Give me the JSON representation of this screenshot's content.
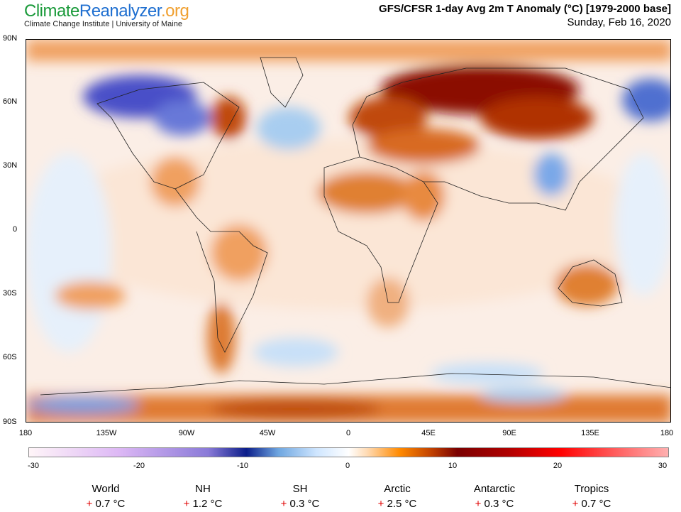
{
  "header": {
    "logo_climate": "Climate",
    "logo_reanalyzer": "Reanalyzer",
    ".org": ".org",
    "logo_org": ".org",
    "subtitle": "Climate Change Institute | University of Maine",
    "title": "GFS/CFSR 1-day Avg 2m T Anomaly (°C) [1979-2000 base]",
    "date": "Sunday, Feb 16, 2020"
  },
  "map": {
    "lat_labels": [
      "90N",
      "60N",
      "30N",
      "0",
      "30S",
      "60S",
      "90S"
    ],
    "lon_labels": [
      "180",
      "135W",
      "90W",
      "45W",
      "0",
      "45E",
      "90E",
      "135E",
      "180"
    ]
  },
  "colorbar": {
    "ticks": [
      "-30",
      "-20",
      "-10",
      "0",
      "10",
      "20",
      "30"
    ],
    "units": "°C"
  },
  "stats": [
    {
      "label": "World",
      "sign": "+",
      "value": "0.7 °C"
    },
    {
      "label": "NH",
      "sign": "+",
      "value": "1.2 °C"
    },
    {
      "label": "SH",
      "sign": "+",
      "value": "0.3 °C"
    },
    {
      "label": "Arctic",
      "sign": "+",
      "value": "2.5 °C"
    },
    {
      "label": "Antarctic",
      "sign": "+",
      "value": "0.3 °C"
    },
    {
      "label": "Tropics",
      "sign": "+",
      "value": "0.7 °C"
    }
  ]
}
